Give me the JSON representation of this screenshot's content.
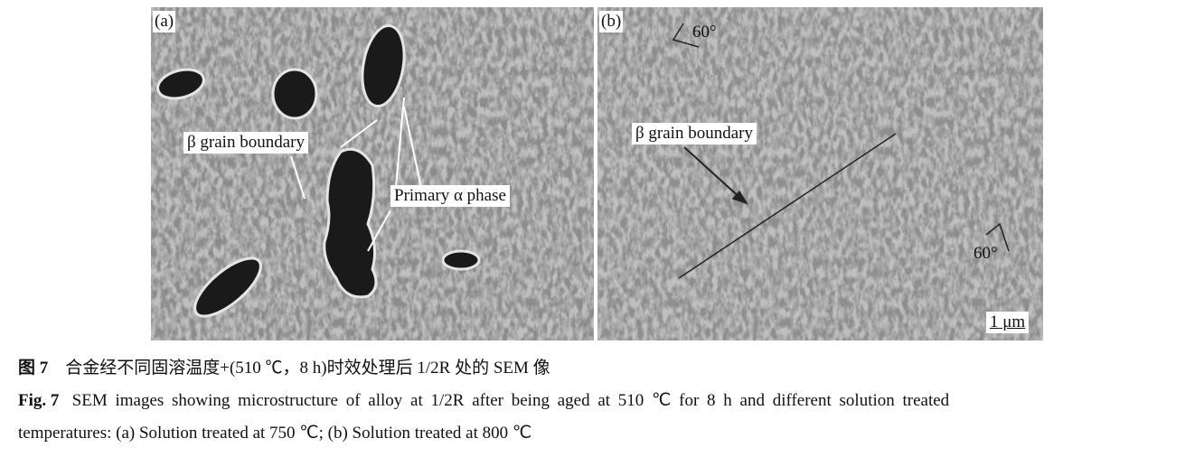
{
  "panel_a": {
    "label": "(a)",
    "beta_label": "β grain boundary",
    "alpha_label": "Primary α phase"
  },
  "panel_b": {
    "label": "(b)",
    "beta_label": "β grain boundary",
    "angle_1": "60°",
    "angle_2": "60°",
    "scale_bar": "1 μm"
  },
  "caption_cn": {
    "fig": "图 7",
    "text": "合金经不同固溶温度+(510 ℃，8 h)时效处理后 1/2R 处的 SEM 像"
  },
  "caption_en": {
    "fig": "Fig. 7",
    "line1": "SEM images showing microstructure of alloy at 1/2R after being aged at 510 ℃ for 8 h and different solution treated",
    "line2": "temperatures: (a) Solution treated at 750 ℃; (b) Solution treated at 800 ℃"
  }
}
